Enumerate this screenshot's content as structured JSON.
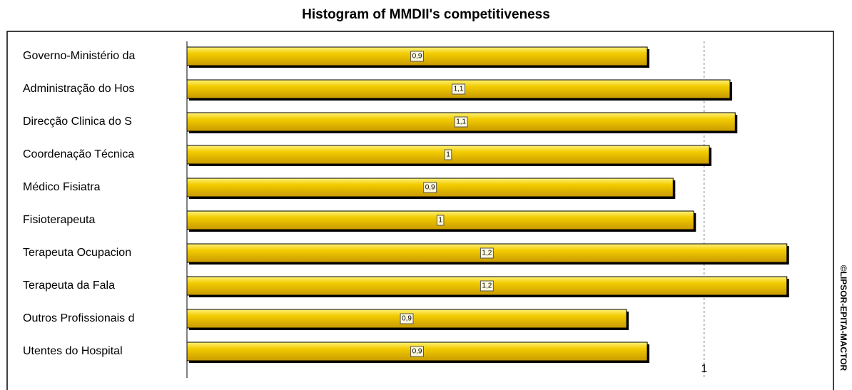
{
  "chart_data": {
    "type": "hbar",
    "title": "Histogram of MMDII's competitiveness",
    "categories": [
      "Governo-Ministério da",
      "Administração  do Hos",
      "Direcção  Clinica  do S",
      "Coordenação Técnica",
      "Médico Fisiatra",
      "Fisioterapeuta",
      "Terapeuta Ocupacion",
      "Terapeuta da Fala",
      "Outros  Profissionais  d",
      "Utentes do Hospital"
    ],
    "values": [
      0.89,
      1.05,
      1.06,
      1.01,
      0.94,
      0.98,
      1.16,
      1.16,
      0.85,
      0.89
    ],
    "value_labels": [
      "0,9",
      "1,1",
      "1,1",
      "1",
      "0,9",
      "1",
      "1,2",
      "1,2",
      "0,9",
      "0,9"
    ],
    "color": "#f2cc00",
    "xlim": [
      0,
      1.25
    ],
    "xticks": [
      1
    ],
    "grid": true,
    "watermark": "©LIPSOR-EPITA-MACTOR"
  }
}
